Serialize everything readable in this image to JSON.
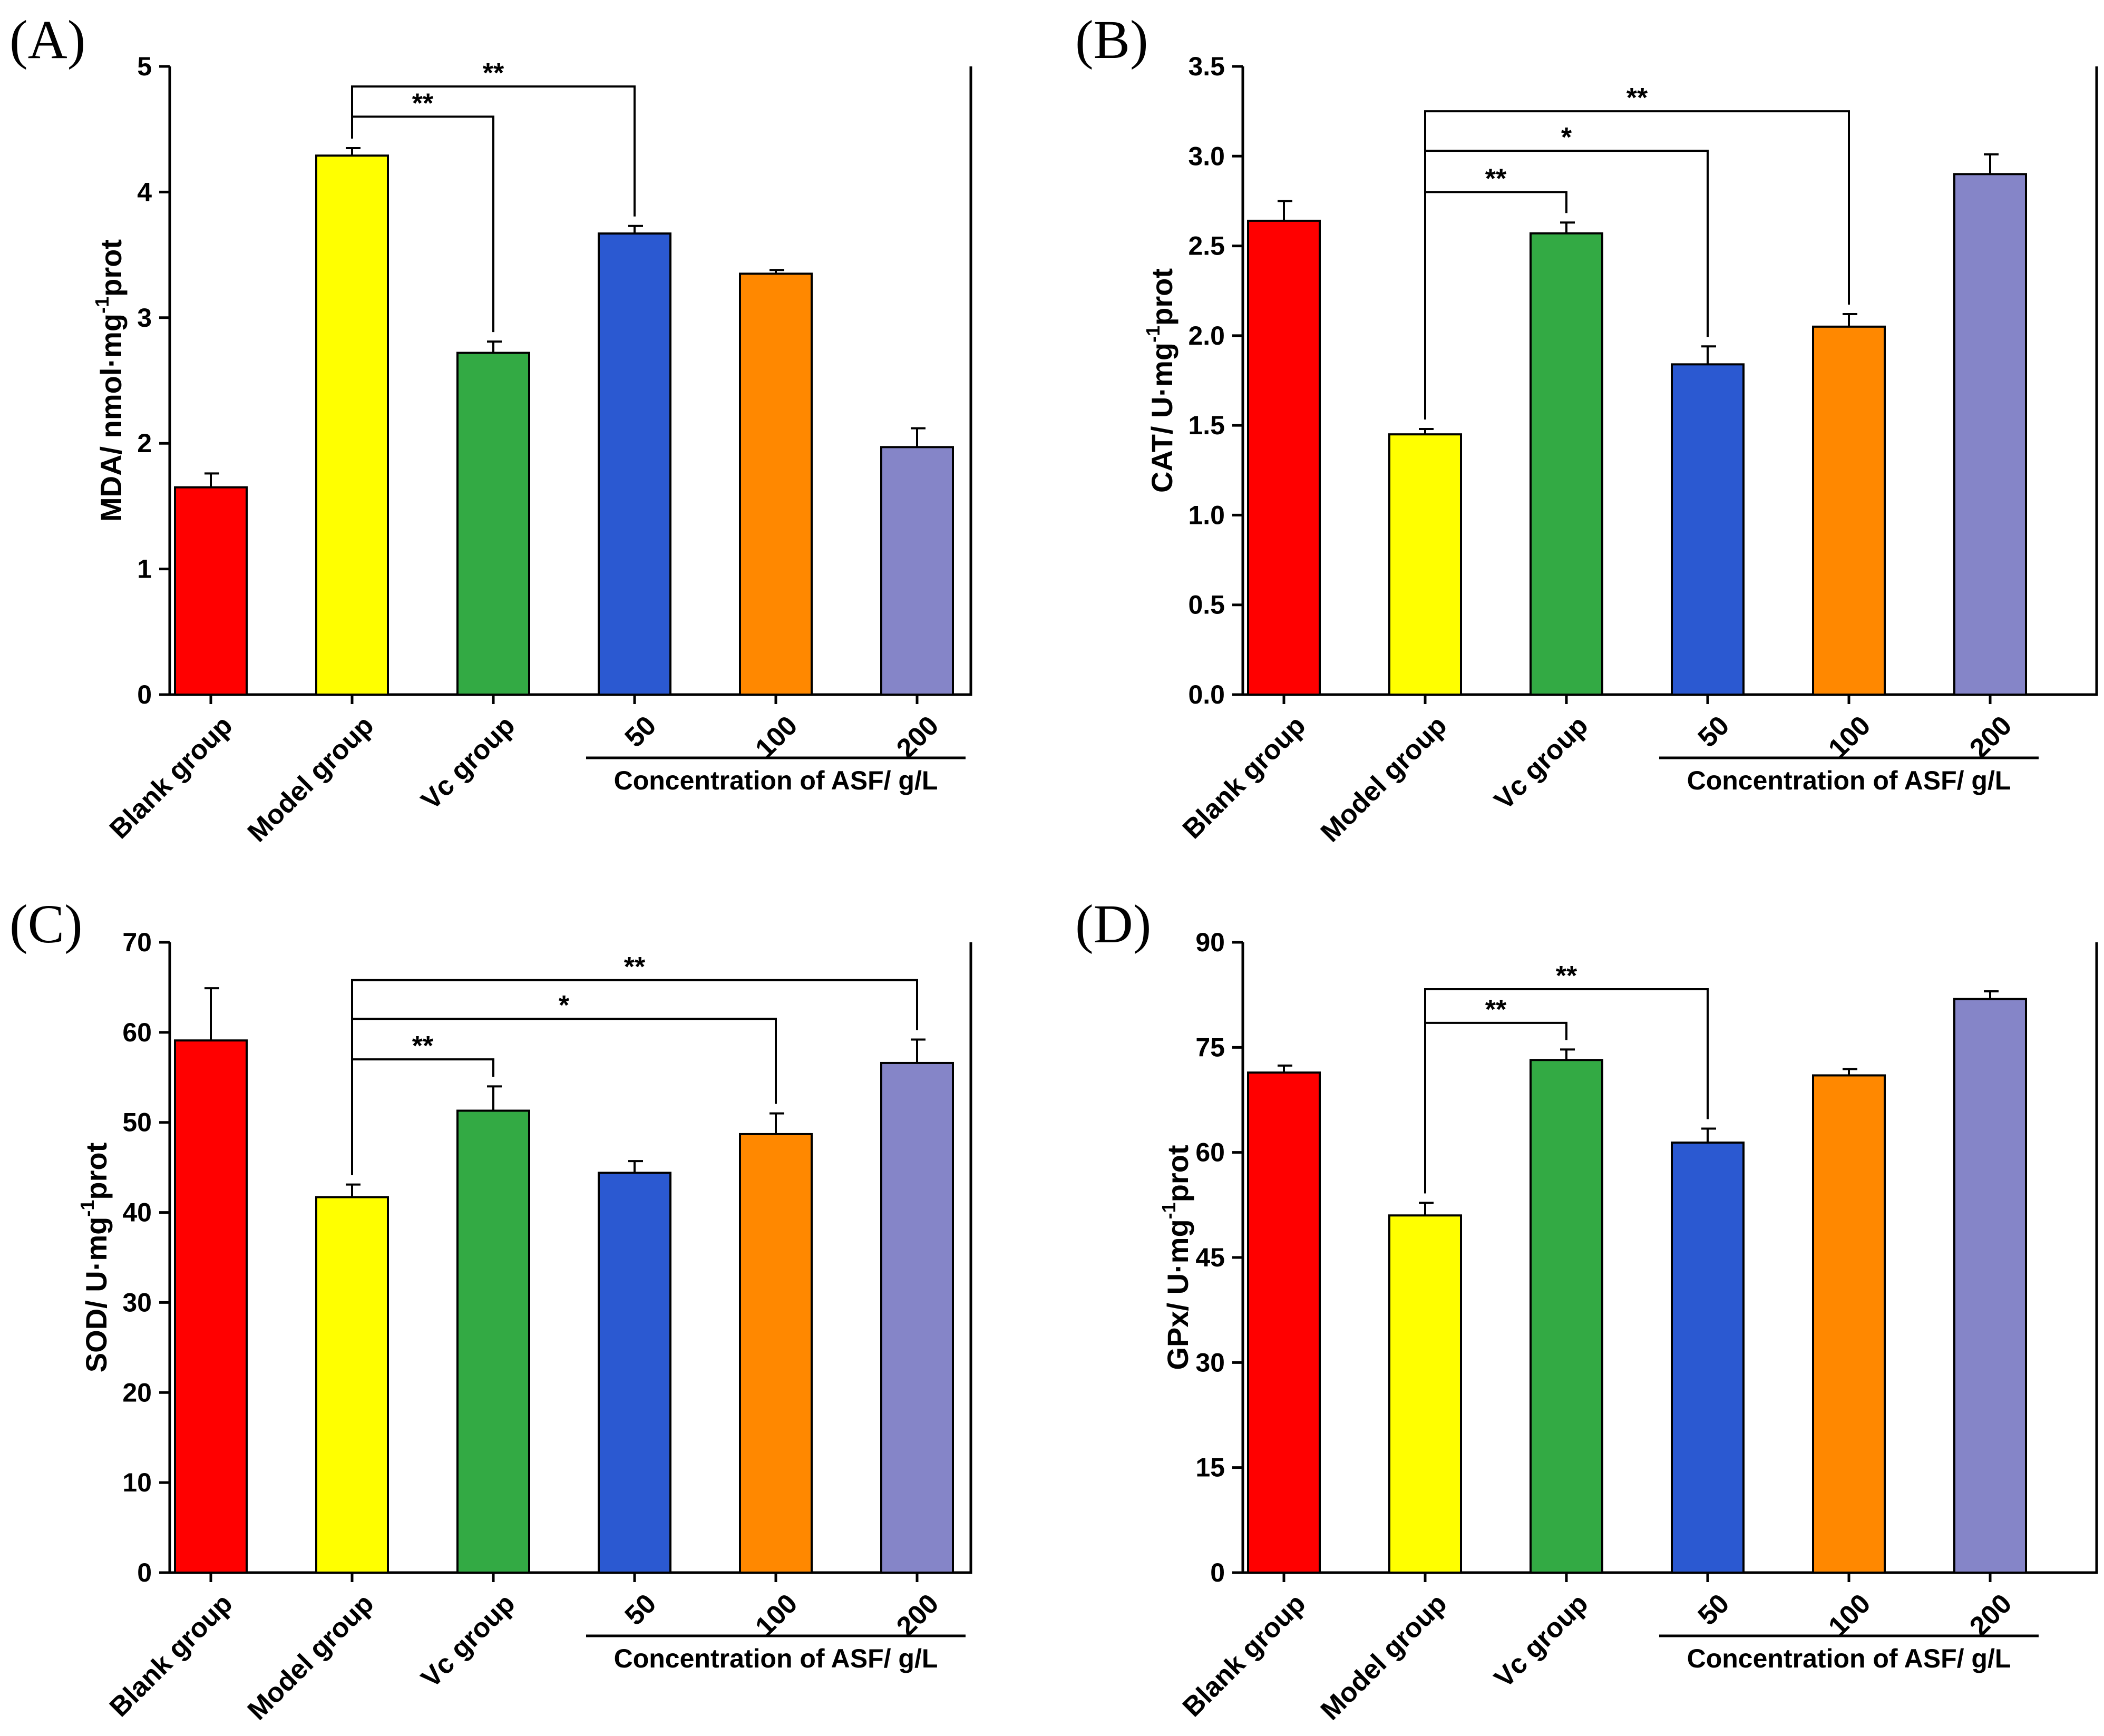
{
  "figure": {
    "categories": [
      "Blank group",
      "Model group",
      "Vc group",
      "50",
      "100",
      "200"
    ],
    "group_caption": "Concentration of ASF/ g/L",
    "colors": {
      "blank": "#ff0000",
      "model": "#ffff00",
      "vc": "#33aa44",
      "asf50": "#2b59d1",
      "asf100": "#ff8800",
      "asf200": "#8585c8"
    }
  },
  "chart_data": [
    {
      "panel_label": "(A)",
      "type": "bar",
      "ylabel": "MDA/ nmol·mg",
      "ylabel_sup": "-1",
      "ylabel_end": "prot",
      "ylim": [
        0,
        5
      ],
      "yticks": [
        0,
        1,
        2,
        3,
        4,
        5
      ],
      "ytick_labels": [
        "0",
        "1",
        "2",
        "3",
        "4",
        "5"
      ],
      "categories": [
        "Blank group",
        "Model group",
        "Vc group",
        "50",
        "100",
        "200"
      ],
      "values": [
        1.65,
        4.29,
        2.72,
        3.67,
        3.35,
        1.97
      ],
      "errors": [
        0.11,
        0.06,
        0.09,
        0.06,
        0.03,
        0.15
      ],
      "group_caption": "Concentration of ASF/ g/L",
      "significance": [
        {
          "from": 1,
          "to": 2,
          "label": "**",
          "y": 4.6
        },
        {
          "from": 1,
          "to": 3,
          "label": "**",
          "y": 4.84
        }
      ]
    },
    {
      "panel_label": "(B)",
      "type": "bar",
      "ylabel": "CAT/ U·mg",
      "ylabel_sup": "-1",
      "ylabel_end": "prot",
      "ylim": [
        0,
        3.5
      ],
      "yticks": [
        0,
        0.5,
        1,
        1.5,
        2,
        2.5,
        3,
        3.5
      ],
      "ytick_labels": [
        "0.0",
        "0.5",
        "1.0",
        "1.5",
        "2.0",
        "2.5",
        "3.0",
        "3.5"
      ],
      "categories": [
        "Blank group",
        "Model group",
        "Vc group",
        "50",
        "100",
        "200"
      ],
      "values": [
        2.64,
        1.45,
        2.57,
        1.84,
        2.05,
        2.9
      ],
      "errors": [
        0.11,
        0.03,
        0.06,
        0.1,
        0.07,
        0.11
      ],
      "group_caption": "Concentration of ASF/ g/L",
      "significance": [
        {
          "from": 1,
          "to": 2,
          "label": "**",
          "y": 2.8
        },
        {
          "from": 1,
          "to": 3,
          "label": "*",
          "y": 3.03
        },
        {
          "from": 1,
          "to": 4,
          "label": "**",
          "y": 3.25
        }
      ]
    },
    {
      "panel_label": "(C)",
      "type": "bar",
      "ylabel": "SOD/ U·mg",
      "ylabel_sup": "-1",
      "ylabel_end": "prot",
      "ylim": [
        0,
        70
      ],
      "yticks": [
        0,
        10,
        20,
        30,
        40,
        50,
        60,
        70
      ],
      "ytick_labels": [
        "0",
        "10",
        "20",
        "30",
        "40",
        "50",
        "60",
        "70"
      ],
      "categories": [
        "Blank group",
        "Model group",
        "Vc group",
        "50",
        "100",
        "200"
      ],
      "values": [
        59.1,
        41.7,
        51.3,
        44.4,
        48.7,
        56.6
      ],
      "errors": [
        5.8,
        1.4,
        2.7,
        1.3,
        2.3,
        2.6
      ],
      "group_caption": "Concentration of ASF/ g/L",
      "significance": [
        {
          "from": 1,
          "to": 2,
          "label": "**",
          "y": 57
        },
        {
          "from": 1,
          "to": 4,
          "label": "*",
          "y": 61.5
        },
        {
          "from": 1,
          "to": 5,
          "label": "**",
          "y": 65.8
        }
      ]
    },
    {
      "panel_label": "(D)",
      "type": "bar",
      "ylabel": "GPx/ U·mg",
      "ylabel_sup": "-1",
      "ylabel_end": "prot",
      "ylim": [
        0,
        90
      ],
      "yticks": [
        0,
        15,
        30,
        45,
        60,
        75,
        90
      ],
      "ytick_labels": [
        "0",
        "15",
        "30",
        "45",
        "60",
        "75",
        "90"
      ],
      "categories": [
        "Blank group",
        "Model group",
        "Vc group",
        "50",
        "100",
        "200"
      ],
      "values": [
        71.4,
        51,
        73.2,
        61.4,
        71,
        81.9
      ],
      "errors": [
        1,
        1.8,
        1.5,
        2,
        0.9,
        1.1
      ],
      "group_caption": "Concentration of ASF/ g/L",
      "significance": [
        {
          "from": 1,
          "to": 2,
          "label": "**",
          "y": 78.5
        },
        {
          "from": 1,
          "to": 3,
          "label": "**",
          "y": 83.3
        }
      ]
    }
  ]
}
